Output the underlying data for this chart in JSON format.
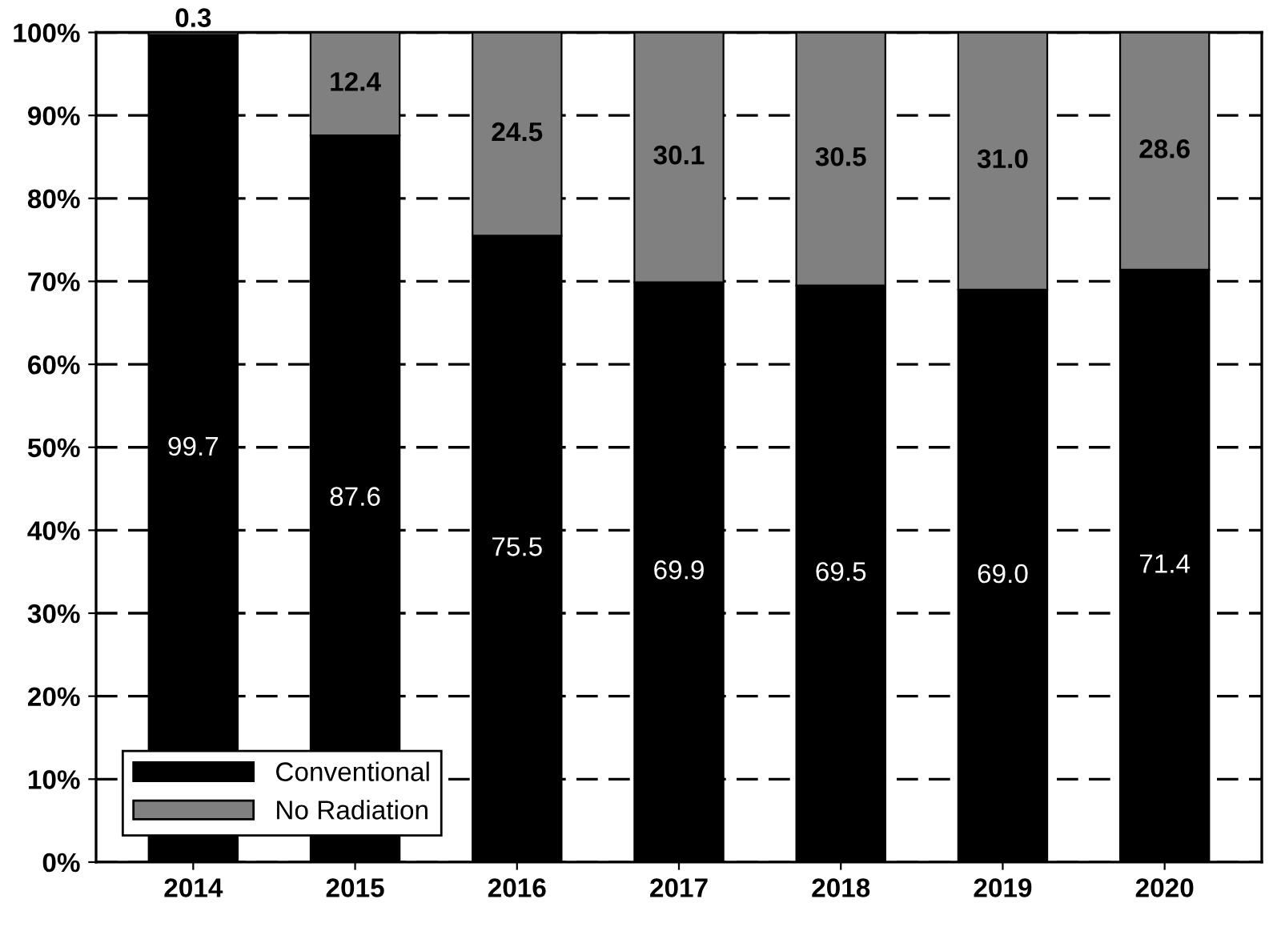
{
  "chart_data": {
    "type": "bar",
    "stacked": true,
    "categories": [
      "2014",
      "2015",
      "2016",
      "2017",
      "2018",
      "2019",
      "2020"
    ],
    "series": [
      {
        "name": "Conventional",
        "color": "#000000",
        "values": [
          99.7,
          87.6,
          75.5,
          69.9,
          69.5,
          69.0,
          71.4
        ],
        "value_labels": [
          "99.7",
          "87.6",
          "75.5",
          "69.9",
          "69.5",
          "69.0",
          "71.4"
        ]
      },
      {
        "name": "No Radiation",
        "color": "#808080",
        "values": [
          0.3,
          12.4,
          24.5,
          30.1,
          30.5,
          31.0,
          28.6
        ],
        "value_labels": [
          "0.3",
          "12.4",
          "24.5",
          "30.1",
          "30.5",
          "31.0",
          "28.6"
        ]
      }
    ],
    "ylim": [
      0,
      100
    ],
    "yticks": [
      {
        "value": 0,
        "label": "0%"
      },
      {
        "value": 10,
        "label": "10%"
      },
      {
        "value": 20,
        "label": "20%"
      },
      {
        "value": 30,
        "label": "30%"
      },
      {
        "value": 40,
        "label": "40%"
      },
      {
        "value": 50,
        "label": "50%"
      },
      {
        "value": 60,
        "label": "60%"
      },
      {
        "value": 70,
        "label": "70%"
      },
      {
        "value": 80,
        "label": "80%"
      },
      {
        "value": 90,
        "label": "90%"
      },
      {
        "value": 100,
        "label": "100%"
      }
    ],
    "grid": "y",
    "line_style": "dashed",
    "legend": "bottom left"
  }
}
